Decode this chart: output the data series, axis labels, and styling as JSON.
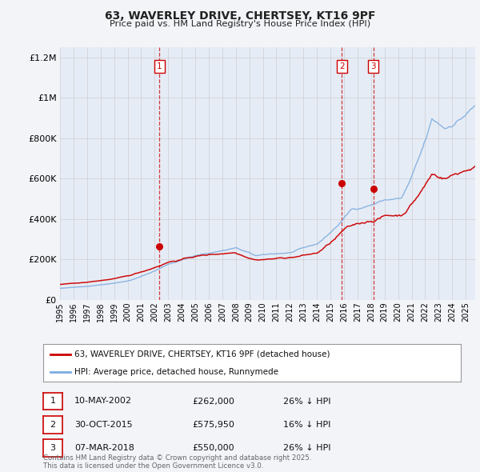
{
  "title": "63, WAVERLEY DRIVE, CHERTSEY, KT16 9PF",
  "subtitle": "Price paid vs. HM Land Registry's House Price Index (HPI)",
  "legend_label_red": "63, WAVERLEY DRIVE, CHERTSEY, KT16 9PF (detached house)",
  "legend_label_blue": "HPI: Average price, detached house, Runnymede",
  "footnote": "Contains HM Land Registry data © Crown copyright and database right 2025.\nThis data is licensed under the Open Government Licence v3.0.",
  "transactions": [
    {
      "num": "1",
      "date": "10-MAY-2002",
      "price": "£262,000",
      "hpi": "26% ↓ HPI",
      "year": 2002.36,
      "price_val": 262000
    },
    {
      "num": "2",
      "date": "30-OCT-2015",
      "price": "£575,950",
      "hpi": "16% ↓ HPI",
      "year": 2015.83,
      "price_val": 575950
    },
    {
      "num": "3",
      "date": "07-MAR-2018",
      "price": "£550,000",
      "hpi": "26% ↓ HPI",
      "year": 2018.18,
      "price_val": 550000
    }
  ],
  "ylim_max": 1250000,
  "xlim_start": 1995.0,
  "xlim_end": 2025.7,
  "grid_color": "#cccccc",
  "background_color": "#f2f4f8",
  "plot_bg_color": "#e6ecf5",
  "red_color": "#cc0000",
  "blue_color": "#7aabe0",
  "dashed_color": "#cc0000",
  "yticks": [
    0,
    200000,
    400000,
    600000,
    800000,
    1000000,
    1200000
  ],
  "ytick_labels": [
    "£0",
    "£200K",
    "£400K",
    "£600K",
    "£800K",
    "£1M",
    "£1.2M"
  ],
  "xticks": [
    1995,
    1996,
    1997,
    1998,
    1999,
    2000,
    2001,
    2002,
    2003,
    2004,
    2005,
    2006,
    2007,
    2008,
    2009,
    2010,
    2011,
    2012,
    2013,
    2014,
    2015,
    2016,
    2017,
    2018,
    2019,
    2020,
    2021,
    2022,
    2023,
    2024,
    2025
  ]
}
